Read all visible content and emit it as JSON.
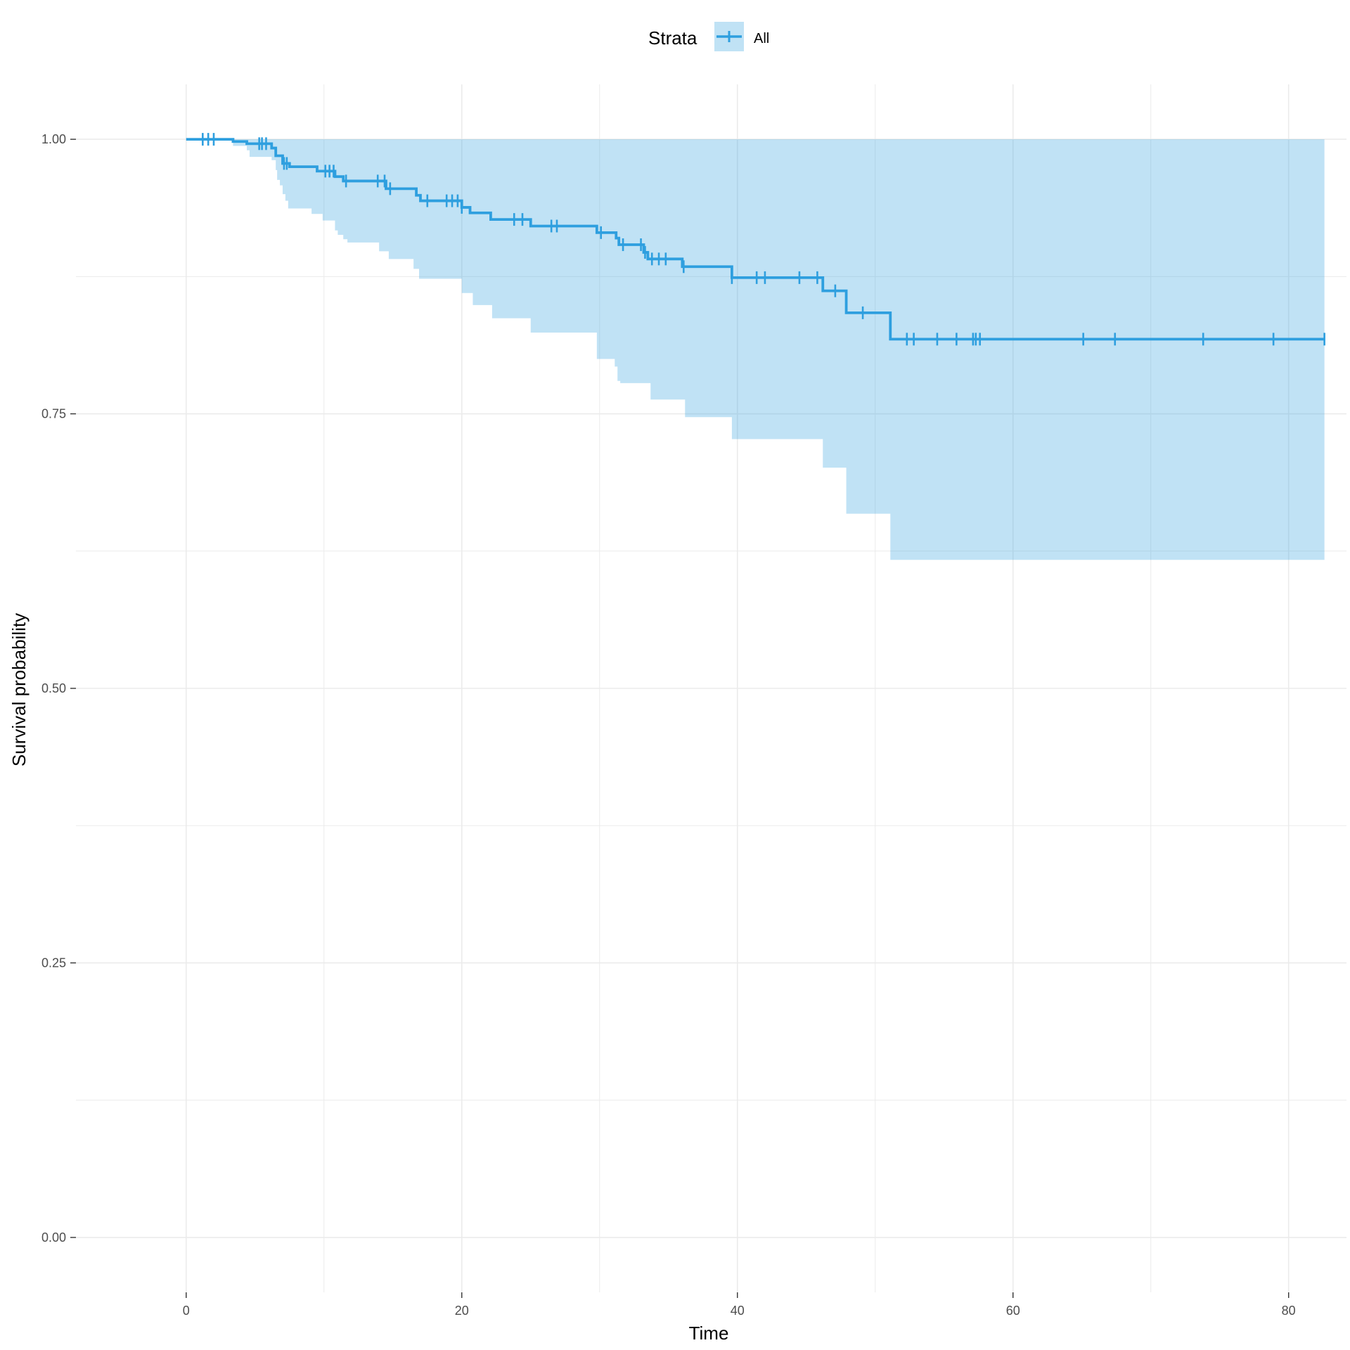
{
  "chart_data": {
    "type": "line",
    "subtype": "kaplan-meier step",
    "xlabel": "Time",
    "ylabel": "Survival probability",
    "xlim": [
      -8,
      84.2
    ],
    "ylim": [
      -0.05,
      1.05
    ],
    "x_ticks": [
      0,
      20,
      40,
      60,
      80
    ],
    "x_tick_labels": [
      "0",
      "20",
      "40",
      "60",
      "80"
    ],
    "y_ticks": [
      0,
      0.25,
      0.5,
      0.75,
      1.0
    ],
    "y_tick_labels": [
      "0.00",
      "0.25",
      "0.50",
      "0.75",
      "1.00"
    ],
    "grid": true,
    "legend": {
      "position": "top",
      "title": "Strata",
      "entries": [
        "All"
      ]
    },
    "colors": {
      "line": "#2E9FDF",
      "ribbon": "#2E9FDF",
      "grid": "#EBEBEB"
    },
    "series": [
      {
        "name": "All",
        "steps": [
          [
            0,
            1.0
          ],
          [
            3.4,
            0.998
          ],
          [
            4.4,
            0.996
          ],
          [
            6.2,
            0.992
          ],
          [
            6.5,
            0.985
          ],
          [
            7.0,
            0.978
          ],
          [
            7.5,
            0.975
          ],
          [
            9.5,
            0.971
          ],
          [
            10.8,
            0.966
          ],
          [
            11.4,
            0.962
          ],
          [
            14.5,
            0.955
          ],
          [
            16.7,
            0.949
          ],
          [
            17.0,
            0.944
          ],
          [
            20.0,
            0.938
          ],
          [
            20.6,
            0.933
          ],
          [
            22.1,
            0.927
          ],
          [
            25.0,
            0.921
          ],
          [
            29.8,
            0.915
          ],
          [
            31.2,
            0.91
          ],
          [
            31.4,
            0.904
          ],
          [
            33.2,
            0.897
          ],
          [
            33.5,
            0.891
          ],
          [
            36.0,
            0.884
          ],
          [
            39.6,
            0.874
          ],
          [
            46.2,
            0.862
          ],
          [
            47.9,
            0.842
          ],
          [
            51.1,
            0.818
          ],
          [
            82.6,
            0.818
          ]
        ],
        "ci_lower_steps": [
          [
            0,
            1.0
          ],
          [
            3.4,
            0.994
          ],
          [
            4.4,
            0.99
          ],
          [
            4.6,
            0.984
          ],
          [
            6.2,
            0.981
          ],
          [
            6.5,
            0.972
          ],
          [
            6.6,
            0.963
          ],
          [
            6.8,
            0.958
          ],
          [
            7.0,
            0.95
          ],
          [
            7.2,
            0.944
          ],
          [
            7.4,
            0.937
          ],
          [
            9.1,
            0.932
          ],
          [
            9.9,
            0.926
          ],
          [
            10.8,
            0.917
          ],
          [
            11.0,
            0.913
          ],
          [
            11.4,
            0.909
          ],
          [
            11.7,
            0.906
          ],
          [
            14.0,
            0.898
          ],
          [
            14.7,
            0.891
          ],
          [
            16.5,
            0.882
          ],
          [
            16.9,
            0.873
          ],
          [
            20.0,
            0.86
          ],
          [
            20.8,
            0.849
          ],
          [
            22.2,
            0.837
          ],
          [
            25.0,
            0.824
          ],
          [
            29.8,
            0.8
          ],
          [
            31.1,
            0.793
          ],
          [
            31.3,
            0.78
          ],
          [
            31.5,
            0.778
          ],
          [
            33.7,
            0.763
          ],
          [
            36.2,
            0.747
          ],
          [
            39.6,
            0.727
          ],
          [
            46.2,
            0.701
          ],
          [
            47.9,
            0.659
          ],
          [
            51.1,
            0.617
          ],
          [
            82.6,
            0.617
          ]
        ],
        "ci_upper": 1.0,
        "censor_times": [
          1.2,
          1.6,
          2.0,
          5.3,
          5.5,
          5.8,
          7.1,
          7.3,
          10.1,
          10.4,
          10.7,
          11.6,
          13.9,
          14.4,
          14.8,
          17.5,
          18.9,
          19.3,
          19.7,
          20.0,
          23.8,
          24.4,
          26.5,
          26.9,
          30.1,
          31.7,
          33.0,
          33.3,
          33.8,
          34.3,
          34.8,
          36.1,
          39.6,
          41.4,
          42.0,
          44.5,
          45.8,
          47.1,
          49.1,
          52.3,
          52.8,
          54.5,
          55.9,
          57.1,
          57.3,
          57.6,
          65.1,
          67.4,
          73.8,
          78.9,
          82.6
        ]
      }
    ]
  }
}
